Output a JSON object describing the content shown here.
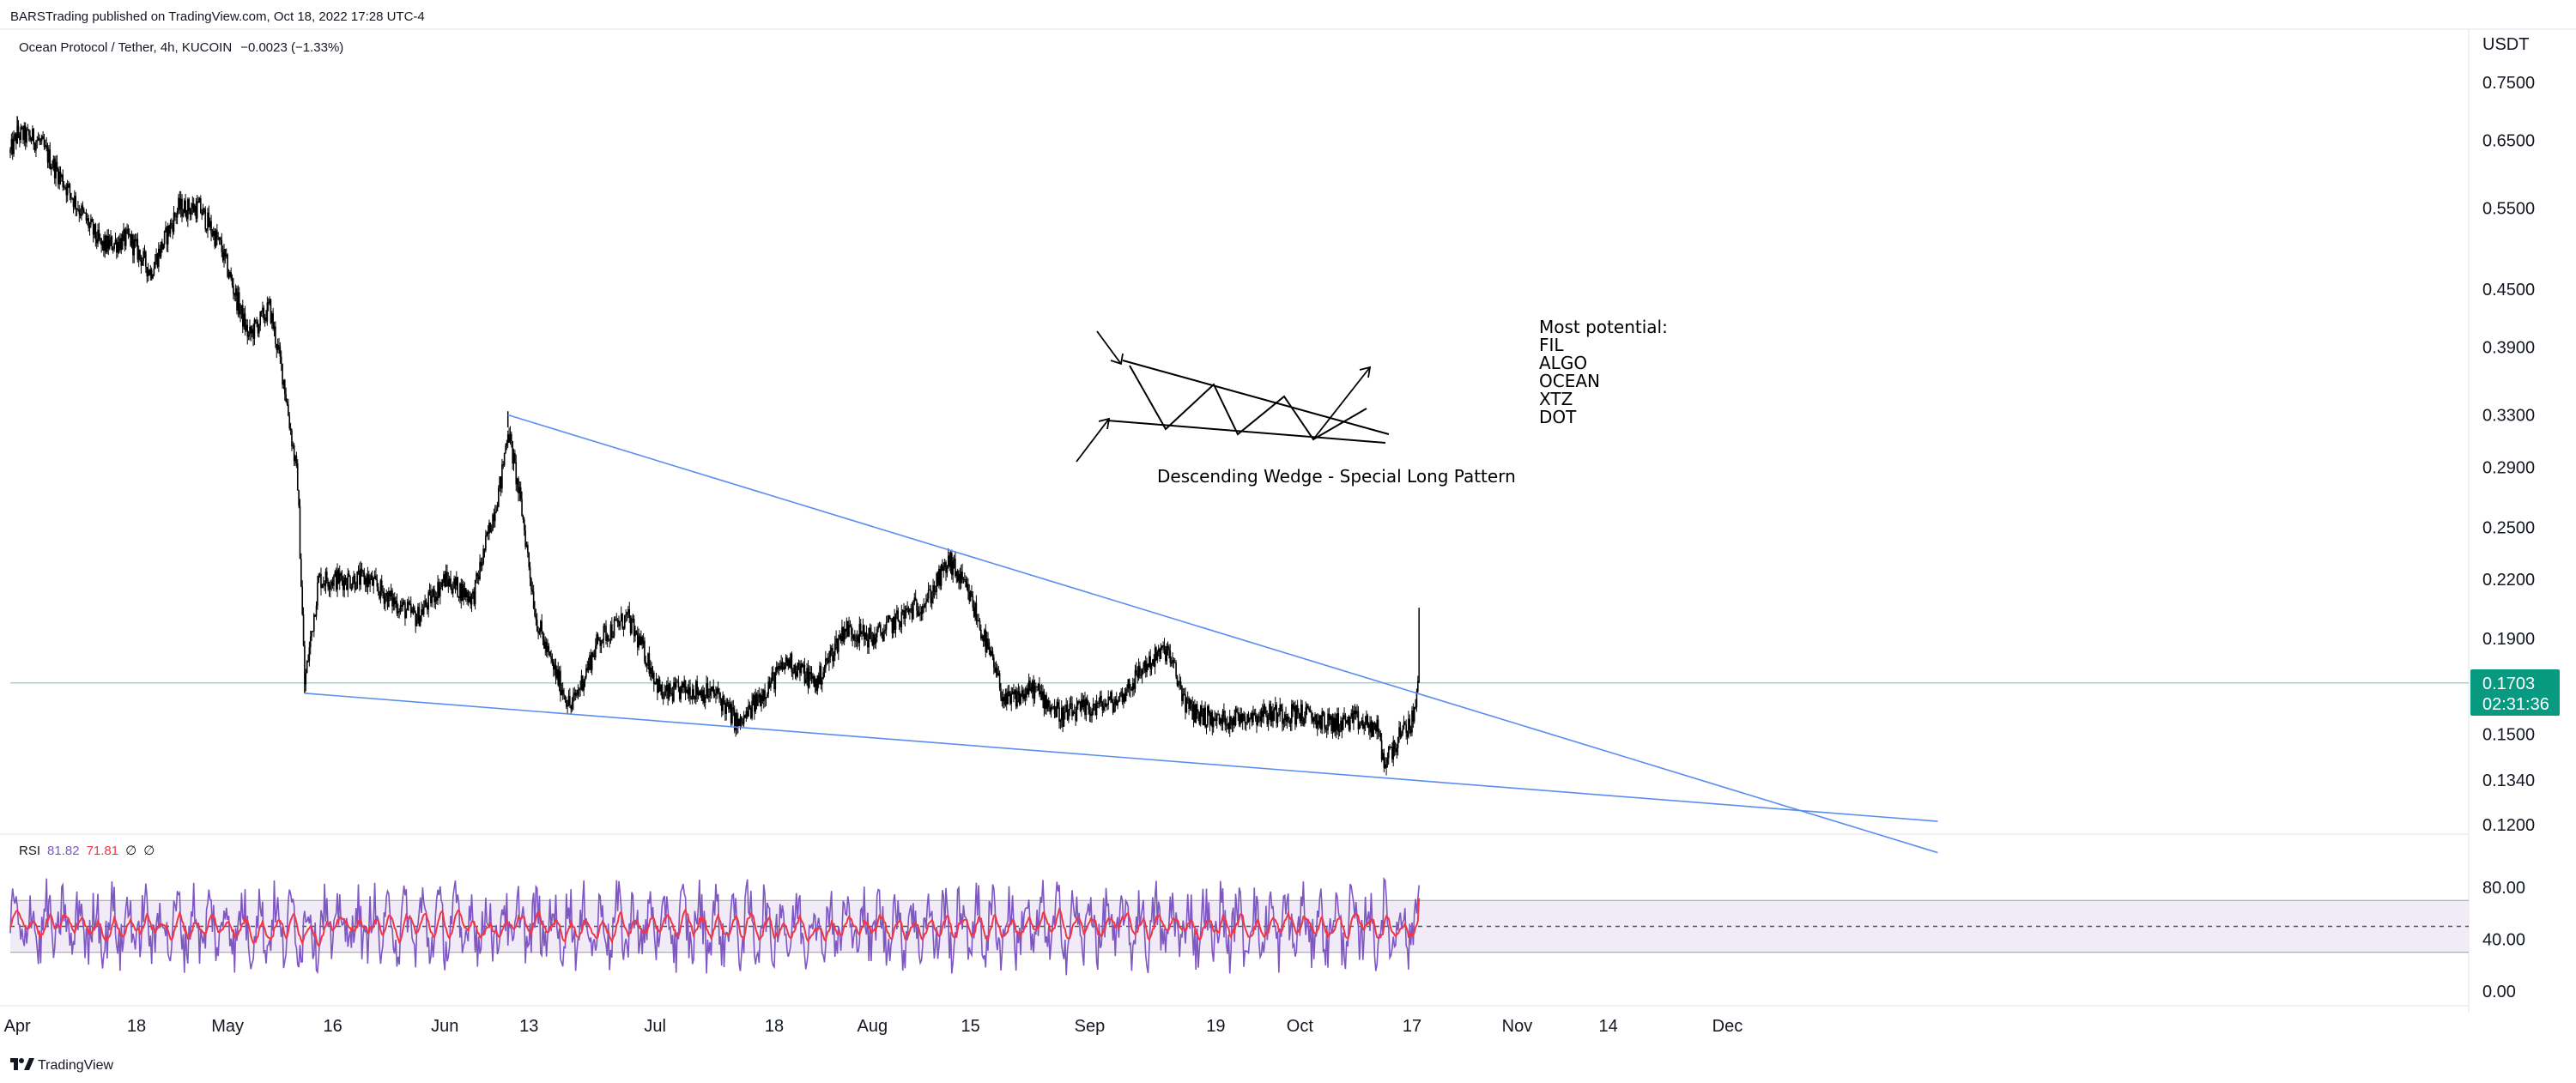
{
  "header": {
    "published": "BARSTrading published on TradingView.com, Oct 18, 2022 17:28 UTC-4",
    "symbol": "Ocean Protocol / Tether, 4h, KUCOIN",
    "change": "−0.0023 (−1.33%)"
  },
  "price_axis": {
    "unit": "USDT",
    "ticks": [
      "0.7500",
      "0.6500",
      "0.5500",
      "0.4500",
      "0.3900",
      "0.3300",
      "0.2900",
      "0.2500",
      "0.2200",
      "0.1900",
      "0.1500",
      "0.1340",
      "0.1200"
    ]
  },
  "last_price": {
    "value": "0.1703",
    "countdown": "02:31:36"
  },
  "time_axis": [
    "Apr",
    "18",
    "May",
    "16",
    "Jun",
    "13",
    "Jul",
    "18",
    "Aug",
    "15",
    "Sep",
    "19",
    "Oct",
    "17",
    "Nov",
    "14",
    "Dec"
  ],
  "annotations": {
    "pattern_label": "Descending Wedge - Special Long Pattern",
    "potential_title": "Most potential:",
    "potential_list": [
      "FIL",
      "ALGO",
      "OCEAN",
      "XTZ",
      "DOT"
    ]
  },
  "rsi": {
    "label": "RSI",
    "value1": "81.82",
    "value2": "71.81",
    "value3": "∅",
    "value4": "∅",
    "ticks": [
      "80.00",
      "40.00",
      "0.00"
    ]
  },
  "logo": {
    "text": "TradingView"
  },
  "colors": {
    "candle": "#000000",
    "trendline": "#5b8def",
    "badge": "#089981",
    "rsi_line": "#7e57c2",
    "rsi_ma": "#f23645",
    "rsi_band": "#ede7f6"
  },
  "chart_data": {
    "type": "candlestick",
    "x_unit": "date",
    "y_unit": "USDT",
    "y_scale": "log",
    "ylim": [
      0.115,
      0.78
    ],
    "price_path": [
      [
        "2022-03-31",
        0.63
      ],
      [
        "2022-04-01",
        0.66
      ],
      [
        "2022-04-04",
        0.65
      ],
      [
        "2022-04-08",
        0.58
      ],
      [
        "2022-04-13",
        0.5
      ],
      [
        "2022-04-17",
        0.51
      ],
      [
        "2022-04-20",
        0.47
      ],
      [
        "2022-04-24",
        0.55
      ],
      [
        "2022-04-27",
        0.55
      ],
      [
        "2022-04-30",
        0.5
      ],
      [
        "2022-05-04",
        0.4
      ],
      [
        "2022-05-07",
        0.43
      ],
      [
        "2022-05-09",
        0.36
      ],
      [
        "2022-05-11",
        0.28
      ],
      [
        "2022-05-12",
        0.17
      ],
      [
        "2022-05-14",
        0.22
      ],
      [
        "2022-05-17",
        0.22
      ],
      [
        "2022-05-21",
        0.22
      ],
      [
        "2022-05-24",
        0.21
      ],
      [
        "2022-05-28",
        0.2
      ],
      [
        "2022-06-01",
        0.22
      ],
      [
        "2022-06-05",
        0.21
      ],
      [
        "2022-06-09",
        0.28
      ],
      [
        "2022-06-10",
        0.32
      ],
      [
        "2022-06-12",
        0.26
      ],
      [
        "2022-06-14",
        0.2
      ],
      [
        "2022-06-16",
        0.18
      ],
      [
        "2022-06-19",
        0.16
      ],
      [
        "2022-06-23",
        0.19
      ],
      [
        "2022-06-27",
        0.2
      ],
      [
        "2022-06-30",
        0.18
      ],
      [
        "2022-07-02",
        0.165
      ],
      [
        "2022-07-06",
        0.168
      ],
      [
        "2022-07-10",
        0.165
      ],
      [
        "2022-07-13",
        0.153
      ],
      [
        "2022-07-16",
        0.165
      ],
      [
        "2022-07-20",
        0.18
      ],
      [
        "2022-07-24",
        0.17
      ],
      [
        "2022-07-28",
        0.195
      ],
      [
        "2022-08-01",
        0.19
      ],
      [
        "2022-08-05",
        0.2
      ],
      [
        "2022-08-09",
        0.21
      ],
      [
        "2022-08-12",
        0.23
      ],
      [
        "2022-08-15",
        0.21
      ],
      [
        "2022-08-18",
        0.18
      ],
      [
        "2022-08-20",
        0.162
      ],
      [
        "2022-08-24",
        0.168
      ],
      [
        "2022-08-28",
        0.157
      ],
      [
        "2022-09-01",
        0.16
      ],
      [
        "2022-09-05",
        0.163
      ],
      [
        "2022-09-09",
        0.178
      ],
      [
        "2022-09-12",
        0.185
      ],
      [
        "2022-09-15",
        0.16
      ],
      [
        "2022-09-19",
        0.155
      ],
      [
        "2022-09-23",
        0.157
      ],
      [
        "2022-09-27",
        0.158
      ],
      [
        "2022-10-01",
        0.158
      ],
      [
        "2022-10-05",
        0.154
      ],
      [
        "2022-10-09",
        0.155
      ],
      [
        "2022-10-12",
        0.152
      ],
      [
        "2022-10-13",
        0.14
      ],
      [
        "2022-10-15",
        0.148
      ],
      [
        "2022-10-17",
        0.155
      ],
      [
        "2022-10-18",
        0.1703
      ]
    ],
    "wick_extremes": [
      [
        "2022-04-01",
        0.69
      ],
      [
        "2022-05-12",
        0.166
      ],
      [
        "2022-06-10",
        0.333
      ],
      [
        "2022-10-13",
        0.138
      ],
      [
        "2022-10-18",
        0.205
      ]
    ],
    "last_price": 0.1703,
    "trendlines": [
      {
        "name": "",
        "points": [
          [
            "2022-06-10",
            0.33
          ],
          [
            "2022-12-31",
            0.112
          ]
        ]
      },
      {
        "name": "",
        "points": [
          [
            "2022-05-12",
            0.166
          ],
          [
            "2022-12-31",
            0.121
          ]
        ]
      }
    ],
    "rsi": {
      "ylim": [
        0,
        100
      ],
      "band": [
        30,
        70
      ],
      "midline": 50,
      "last": 81.82,
      "ma_last": 71.81
    }
  }
}
